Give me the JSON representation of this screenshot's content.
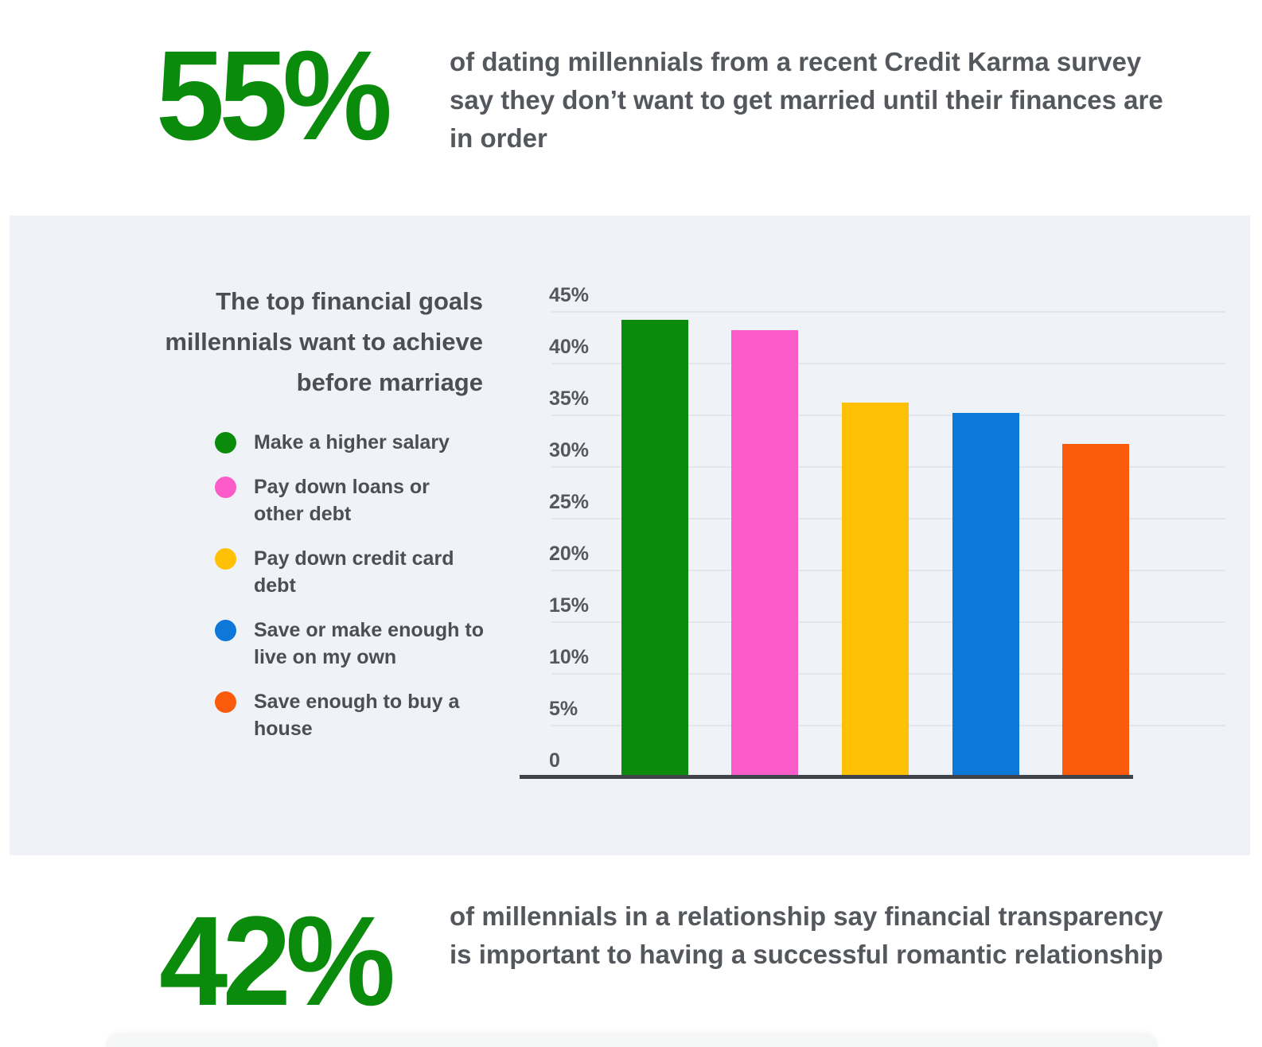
{
  "stat_top": {
    "value": "55%",
    "text": "of dating millennials from a recent Credit Karma survey say they don’t want to get married until their finances are in order"
  },
  "panel": {
    "title": "The top financial goals millennials want to achieve before marriage"
  },
  "chart_data": {
    "type": "bar",
    "title": "The top financial goals millennials want to achieve before marriage",
    "categories": [
      "Make a higher salary",
      "Pay down loans or other debt",
      "Pay down credit card debt",
      "Save or make enough to live on my own",
      "Save enough to buy a house"
    ],
    "values": [
      44,
      43,
      36,
      35,
      32
    ],
    "unit": "%",
    "colors": [
      "#0B8B0B",
      "#FB5CC9",
      "#FFC105",
      "#0E78D8",
      "#F95B0B"
    ],
    "xlabel": "",
    "ylabel": "",
    "ylim": [
      0,
      45
    ],
    "ytick_step": 5,
    "ytick_labels": [
      "0",
      "5%",
      "10%",
      "15%",
      "20%",
      "25%",
      "30%",
      "35%",
      "40%",
      "45%"
    ],
    "grid": true,
    "legend_position": "left"
  },
  "stat_bottom": {
    "value": "42%",
    "text": "of millennials in a relationship say financial transparency is important to having a successful romantic relationship"
  },
  "colors": {
    "accent_green": "#0B8B0B",
    "text_dark": "#54585C",
    "panel_background": "#EFF2F6",
    "gridline": "#E2E5EA",
    "axis_line": "#3F434A"
  }
}
